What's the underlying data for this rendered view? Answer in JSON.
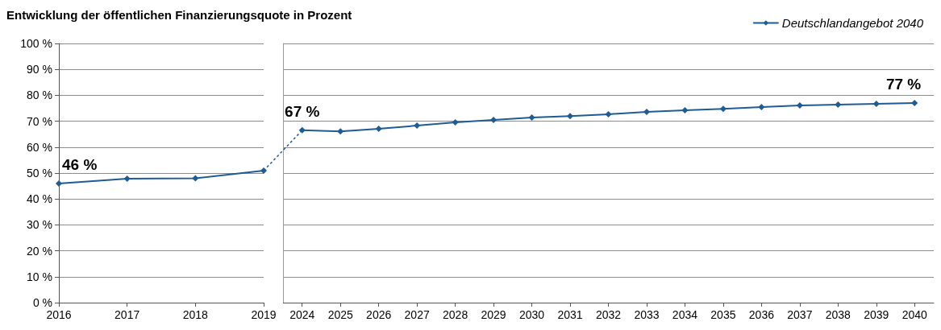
{
  "chart_data": [
    {
      "type": "line",
      "title": "Entwicklung der öffentlichen Finanzierungsquote in Prozent",
      "categories": [
        "2016",
        "2017",
        "2018",
        "2019"
      ],
      "marker": "diamond",
      "line_style": "solid",
      "grid": "y",
      "series": [
        {
          "color": "#1f5b94",
          "values": [
            46,
            47.8,
            48,
            50.9
          ],
          "value_labels": [
            "46 %",
            null,
            null,
            null
          ]
        }
      ],
      "ylim": [
        0,
        100
      ],
      "yticks": [
        {
          "value": 0,
          "label": "0 %"
        },
        {
          "value": 10,
          "label": "10 %"
        },
        {
          "value": 20,
          "label": "20 %"
        },
        {
          "value": 30,
          "label": "30 %"
        },
        {
          "value": 40,
          "label": "40 %"
        },
        {
          "value": 50,
          "label": "50 %"
        },
        {
          "value": 60,
          "label": "60 %"
        },
        {
          "value": 70,
          "label": "70 %"
        },
        {
          "value": 80,
          "label": "80 %"
        },
        {
          "value": 90,
          "label": "90 %"
        },
        {
          "value": 100,
          "label": "100 %"
        }
      ]
    },
    {
      "type": "line",
      "categories": [
        "2024",
        "2025",
        "2026",
        "2027",
        "2028",
        "2029",
        "2030",
        "2031",
        "2032",
        "2033",
        "2034",
        "2035",
        "2036",
        "2037",
        "2038",
        "2039",
        "2040"
      ],
      "marker": "diamond",
      "line_style": "solid",
      "grid": "y",
      "legend": "top right",
      "tick_labels": "x",
      "series": [
        {
          "name": "Deutschlandangebot 2040",
          "color": "#1f5b94",
          "values": [
            66.5,
            66.1,
            67.1,
            68.3,
            69.6,
            70.5,
            71.4,
            72,
            72.7,
            73.6,
            74.2,
            74.8,
            75.5,
            76.1,
            76.4,
            76.7,
            77
          ],
          "value_labels": [
            "67 %",
            null,
            null,
            null,
            null,
            null,
            null,
            null,
            null,
            null,
            null,
            null,
            null,
            null,
            null,
            null,
            "77 %"
          ]
        }
      ],
      "ylim": [
        0,
        100
      ],
      "yticks": [
        {
          "value": 0,
          "label": null
        },
        {
          "value": 10,
          "label": null
        },
        {
          "value": 20,
          "label": null
        },
        {
          "value": 30,
          "label": null
        },
        {
          "value": 40,
          "label": null
        },
        {
          "value": 50,
          "label": null
        },
        {
          "value": 60,
          "label": null
        },
        {
          "value": 70,
          "label": null
        },
        {
          "value": 80,
          "label": null
        },
        {
          "value": 90,
          "label": null
        },
        {
          "value": 100,
          "label": null
        }
      ]
    }
  ]
}
